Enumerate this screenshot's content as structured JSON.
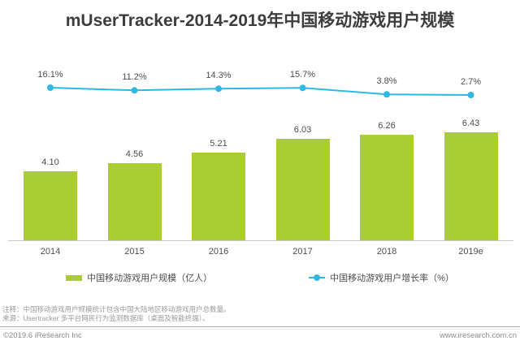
{
  "title": "mUserTracker-2014-2019年中国移动游戏用户规模",
  "chart_data": {
    "type": "bar",
    "categories": [
      "2014",
      "2015",
      "2016",
      "2017",
      "2018",
      "2019e"
    ],
    "series": [
      {
        "name": "中国移动游戏用户规模（亿人）",
        "type": "bar",
        "values": [
          4.1,
          4.56,
          5.21,
          6.03,
          6.26,
          6.43
        ],
        "labels": [
          "4.10",
          "4.56",
          "5.21",
          "6.03",
          "6.26",
          "6.43"
        ],
        "color": "#AACD32"
      },
      {
        "name": "中国移动游戏用户增长率（%）",
        "type": "line",
        "values": [
          16.1,
          11.2,
          14.3,
          15.7,
          3.8,
          2.7
        ],
        "labels": [
          "16.1%",
          "11.2%",
          "14.3%",
          "15.7%",
          "3.8%",
          "2.7%"
        ],
        "color": "#2FB8E6"
      }
    ],
    "title": "mUserTracker-2014-2019年中国移动游戏用户规模",
    "xlabel": "",
    "ylabel": "",
    "grid": false,
    "legend_position": "bottom"
  },
  "legend": {
    "bar_label": "中国移动游戏用户规模（亿人）",
    "line_label": "中国移动游戏用户增长率（%）"
  },
  "notes": {
    "note1": "注释：中国移动游戏用户规模统计包含中国大陆地区移动游戏用户总数量。",
    "note2": "来源：Usertracker 多平台网民行为监测数据库（桌面及智能终端）。"
  },
  "footer": {
    "copyright": "©2019.6 iResearch Inc",
    "website": "www.iresearch.com.cn"
  },
  "colors": {
    "bar": "#AACD32",
    "line": "#2FB8E6",
    "text": "#4d4d4d",
    "axis": "#c9c9c9"
  }
}
